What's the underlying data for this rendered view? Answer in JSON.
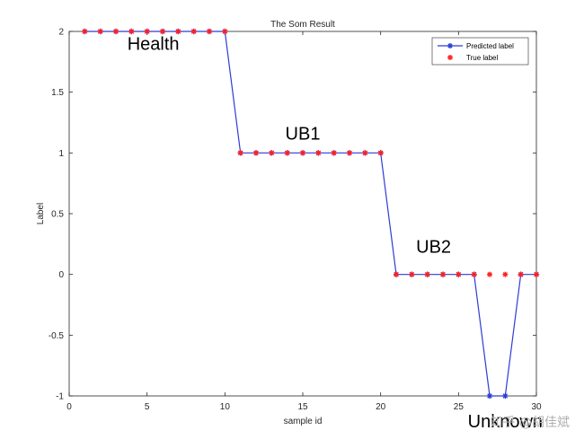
{
  "chart_data": {
    "type": "line",
    "title": "The Som Result",
    "xlabel": "sample id",
    "ylabel": "Label",
    "xlim": [
      0,
      30
    ],
    "ylim": [
      -1,
      2
    ],
    "x_ticks": [
      "0",
      "5",
      "10",
      "15",
      "20",
      "25",
      "30"
    ],
    "y_ticks": [
      "-1",
      "-0.5",
      "0",
      "0.5",
      "1",
      "1.5",
      "2"
    ],
    "grid": false,
    "legend_position": "top-right",
    "series": [
      {
        "name": "Predicted label",
        "style": "line-star",
        "color": "#2E3BD6",
        "x": [
          1,
          2,
          3,
          4,
          5,
          6,
          7,
          8,
          9,
          10,
          11,
          12,
          13,
          14,
          15,
          16,
          17,
          18,
          19,
          20,
          21,
          22,
          23,
          24,
          25,
          26,
          27,
          28,
          29,
          30
        ],
        "values": [
          2,
          2,
          2,
          2,
          2,
          2,
          2,
          2,
          2,
          2,
          1,
          1,
          1,
          1,
          1,
          1,
          1,
          1,
          1,
          1,
          0,
          0,
          0,
          0,
          0,
          0,
          -1,
          -1,
          0,
          0
        ]
      },
      {
        "name": "True label",
        "style": "star-marker",
        "color": "#FF2020",
        "x": [
          1,
          2,
          3,
          4,
          5,
          6,
          7,
          8,
          9,
          10,
          11,
          12,
          13,
          14,
          15,
          16,
          17,
          18,
          19,
          20,
          21,
          22,
          23,
          24,
          25,
          26,
          27,
          28,
          29,
          30
        ],
        "values": [
          2,
          2,
          2,
          2,
          2,
          2,
          2,
          2,
          2,
          2,
          1,
          1,
          1,
          1,
          1,
          1,
          1,
          1,
          1,
          1,
          0,
          0,
          0,
          0,
          0,
          0,
          0,
          0,
          0,
          0
        ]
      }
    ],
    "annotations": [
      {
        "text": "Health",
        "x": 5.4,
        "y": 1.85
      },
      {
        "text": "UB1",
        "x": 15.0,
        "y": 1.11
      },
      {
        "text": "UB2",
        "x": 23.4,
        "y": 0.18
      },
      {
        "text": "Unknown",
        "x": 28.0,
        "y": -1.26
      }
    ]
  },
  "watermark": "知乎 @胡佳斌"
}
